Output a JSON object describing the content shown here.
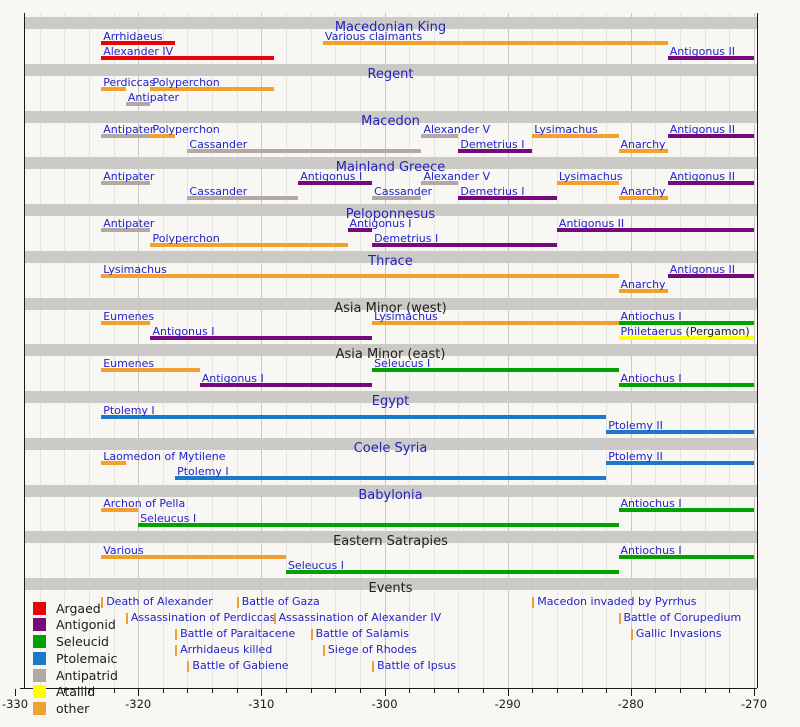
{
  "chart_data": {
    "type": "timeline",
    "x_axis": {
      "min": -330,
      "max": -270,
      "tick_step": 10,
      "minor_step": 2,
      "tick_labels": [
        "-330",
        "-320",
        "-310",
        "-300",
        "-290",
        "-280",
        "-270"
      ]
    },
    "dynasties": [
      {
        "name": "Argaed",
        "color": "#e60404"
      },
      {
        "name": "Antigonid",
        "color": "#770a7a"
      },
      {
        "name": "Seleucid",
        "color": "#00a400"
      },
      {
        "name": "Ptolemaic",
        "color": "#1b79cb"
      },
      {
        "name": "Antipatrid",
        "color": "#b3a9a4"
      },
      {
        "name": "Atallid",
        "color": "#ffff00"
      },
      {
        "name": "other",
        "color": "#f2a12f"
      }
    ],
    "sections": [
      {
        "title": "Macedonian King",
        "title_color": "blue",
        "rows": [
          [
            {
              "label": "Arrhidaeus",
              "dynasty": "Argaed",
              "start": -323,
              "end": -317
            },
            {
              "label": "Various claimants",
              "dynasty": "other",
              "start": -305,
              "end": -277
            }
          ],
          [
            {
              "label": "Alexander IV",
              "dynasty": "Argaed",
              "start": -323,
              "end": -309
            },
            {
              "label": "Antigonus II",
              "dynasty": "Antigonid",
              "start": -277,
              "end": -270
            }
          ]
        ]
      },
      {
        "title": "Regent",
        "title_color": "blue",
        "rows": [
          [
            {
              "label": "Perdiccas",
              "dynasty": "other",
              "start": -323,
              "end": -321
            },
            {
              "label": "Polyperchon",
              "dynasty": "other",
              "start": -319,
              "end": -309
            }
          ],
          [
            {
              "label": "Antipater",
              "dynasty": "Antipatrid",
              "start": -321,
              "end": -319
            }
          ]
        ]
      },
      {
        "title": "Macedon",
        "title_color": "blue",
        "rows": [
          [
            {
              "label": "Antipater",
              "dynasty": "Antipatrid",
              "start": -323,
              "end": -319
            },
            {
              "label": "Polyperchon",
              "dynasty": "other",
              "start": -319,
              "end": -317
            },
            {
              "label": "Alexander V",
              "dynasty": "Antipatrid",
              "start": -297,
              "end": -294
            },
            {
              "label": "Lysimachus",
              "dynasty": "other",
              "start": -288,
              "end": -281
            },
            {
              "label": "Antigonus II",
              "dynasty": "Antigonid",
              "start": -277,
              "end": -270
            }
          ],
          [
            {
              "label": "Cassander",
              "dynasty": "Antipatrid",
              "start": -316,
              "end": -297
            },
            {
              "label": "Demetrius I",
              "dynasty": "Antigonid",
              "start": -294,
              "end": -288
            },
            {
              "label": "Anarchy",
              "dynasty": "other",
              "start": -281,
              "end": -277
            }
          ]
        ]
      },
      {
        "title": "Mainland Greece",
        "title_color": "blue",
        "rows": [
          [
            {
              "label": "Antipater",
              "dynasty": "Antipatrid",
              "start": -323,
              "end": -319
            },
            {
              "label": "Antigonus I",
              "dynasty": "Antigonid",
              "start": -307,
              "end": -301
            },
            {
              "label": "Alexander V",
              "dynasty": "Antipatrid",
              "start": -297,
              "end": -294
            },
            {
              "label": "Lysimachus",
              "dynasty": "other",
              "start": -286,
              "end": -281
            },
            {
              "label": "Antigonus II",
              "dynasty": "Antigonid",
              "start": -277,
              "end": -270
            }
          ],
          [
            {
              "label": "Cassander",
              "dynasty": "Antipatrid",
              "start": -316,
              "end": -307
            },
            {
              "label": "Cassander",
              "dynasty": "Antipatrid",
              "start": -301,
              "end": -297
            },
            {
              "label": "Demetrius I",
              "dynasty": "Antigonid",
              "start": -294,
              "end": -286
            },
            {
              "label": "Anarchy",
              "dynasty": "other",
              "start": -281,
              "end": -277
            }
          ]
        ]
      },
      {
        "title": "Peloponnesus",
        "title_color": "blue",
        "rows": [
          [
            {
              "label": "Antipater",
              "dynasty": "Antipatrid",
              "start": -323,
              "end": -319
            },
            {
              "label": "Antigonus I",
              "dynasty": "Antigonid",
              "start": -303,
              "end": -301
            },
            {
              "label": "Antigonus II",
              "dynasty": "Antigonid",
              "start": -286,
              "end": -270
            }
          ],
          [
            {
              "label": "Polyperchon",
              "dynasty": "other",
              "start": -319,
              "end": -303
            },
            {
              "label": "Demetrius I",
              "dynasty": "Antigonid",
              "start": -301,
              "end": -286
            }
          ]
        ]
      },
      {
        "title": "Thrace",
        "title_color": "blue",
        "rows": [
          [
            {
              "label": "Lysimachus",
              "dynasty": "other",
              "start": -323,
              "end": -281
            },
            {
              "label": "Antigonus II",
              "dynasty": "Antigonid",
              "start": -277,
              "end": -270
            }
          ],
          [
            {
              "label": "Anarchy",
              "dynasty": "other",
              "start": -281,
              "end": -277
            }
          ]
        ]
      },
      {
        "title": "Asia Minor (west)",
        "title_color": "black",
        "rows": [
          [
            {
              "label": "Eumenes",
              "dynasty": "other",
              "start": -323,
              "end": -319
            },
            {
              "label": "Lysimachus",
              "dynasty": "other",
              "start": -301,
              "end": -281
            },
            {
              "label": "Antiochus I",
              "dynasty": "Seleucid",
              "start": -281,
              "end": -270
            }
          ],
          [
            {
              "label": "Antigonus I",
              "dynasty": "Antigonid",
              "start": -319,
              "end": -301
            },
            {
              "label": "Philetaerus",
              "suffix": " (Pergamon)",
              "dynasty": "Atallid",
              "start": -281,
              "end": -270
            }
          ]
        ]
      },
      {
        "title": "Asia Minor (east)",
        "title_color": "black",
        "rows": [
          [
            {
              "label": "Eumenes",
              "dynasty": "other",
              "start": -323,
              "end": -315
            },
            {
              "label": "Seleucus I",
              "dynasty": "Seleucid",
              "start": -301,
              "end": -281
            }
          ],
          [
            {
              "label": "Antigonus I",
              "dynasty": "Antigonid",
              "start": -315,
              "end": -301
            },
            {
              "label": "Antiochus I",
              "dynasty": "Seleucid",
              "start": -281,
              "end": -270
            }
          ]
        ]
      },
      {
        "title": "Egypt",
        "title_color": "blue",
        "rows": [
          [
            {
              "label": "Ptolemy I",
              "dynasty": "Ptolemaic",
              "start": -323,
              "end": -282
            }
          ],
          [
            {
              "label": "Ptolemy II",
              "dynasty": "Ptolemaic",
              "start": -282,
              "end": -270
            }
          ]
        ]
      },
      {
        "title": "Coele Syria",
        "title_color": "blue",
        "rows": [
          [
            {
              "label": "Laomedon of Mytilene",
              "dynasty": "other",
              "start": -323,
              "end": -321
            },
            {
              "label": "Ptolemy II",
              "dynasty": "Ptolemaic",
              "start": -282,
              "end": -270
            }
          ],
          [
            {
              "label": "Ptolemy I",
              "dynasty": "Ptolemaic",
              "start": -317,
              "end": -282
            }
          ]
        ]
      },
      {
        "title": "Babylonia",
        "title_color": "blue",
        "rows": [
          [
            {
              "label": "Archon of Pella",
              "dynasty": "other",
              "start": -323,
              "end": -320
            },
            {
              "label": "Antiochus I",
              "dynasty": "Seleucid",
              "start": -281,
              "end": -270
            }
          ],
          [
            {
              "label": "Seleucus I",
              "dynasty": "Seleucid",
              "start": -320,
              "end": -281
            }
          ]
        ]
      },
      {
        "title": "Eastern Satrapies",
        "title_color": "black",
        "rows": [
          [
            {
              "label": "Various",
              "dynasty": "other",
              "start": -323,
              "end": -308
            },
            {
              "label": "Antiochus I",
              "dynasty": "Seleucid",
              "start": -281,
              "end": -270
            }
          ],
          [
            {
              "label": "Seleucus I",
              "dynasty": "Seleucid",
              "start": -308,
              "end": -281
            }
          ]
        ]
      }
    ],
    "events_section": {
      "title": "Events",
      "title_color": "black",
      "rows": [
        [
          {
            "label": "Death of Alexander",
            "year": -323
          },
          {
            "label": "Battle of Gaza",
            "year": -312
          },
          {
            "label": "Macedon invaded by Pyrrhus",
            "year": -288
          }
        ],
        [
          {
            "label": "Assassination of Perdiccas",
            "year": -321
          },
          {
            "label": "Assassination of Alexander IV",
            "year": -309
          },
          {
            "label": "Battle of Corupedium",
            "year": -281
          }
        ],
        [
          {
            "label": "Battle of Paraitacene",
            "year": -317
          },
          {
            "label": "Battle of Salamis",
            "year": -306
          },
          {
            "label": "Gallic Invasions",
            "year": -280
          }
        ],
        [
          {
            "label": "Arrhidaeus killed",
            "year": -317
          },
          {
            "label": "Siege of Rhodes",
            "year": -305
          }
        ],
        [
          {
            "label": "Battle of Gabiene",
            "year": -316
          },
          {
            "label": "Battle of Ipsus",
            "year": -301
          }
        ]
      ]
    },
    "legend_title": ""
  }
}
